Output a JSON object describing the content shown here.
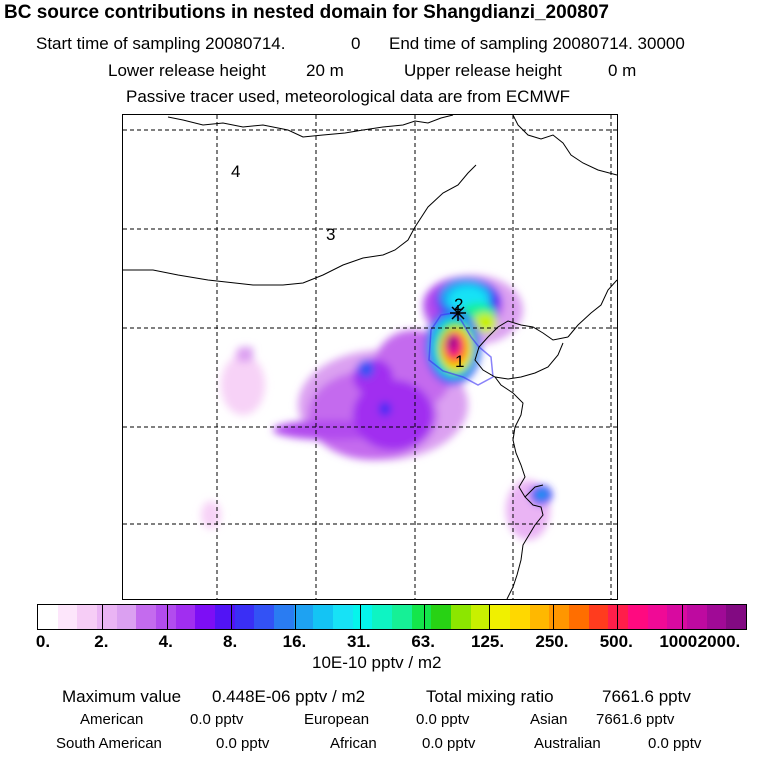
{
  "header": {
    "title": "BC  source contributions in nested domain for Shangdianzi_200807",
    "start_label": "Start time of sampling 20080714.",
    "start_value": "0",
    "end_label": "End time of sampling 20080714. 30000",
    "lower_label": "Lower release height",
    "lower_value": "20 m",
    "upper_label": "Upper release height",
    "upper_value": "0 m",
    "tracer_note": "Passive tracer used, meteorological data are from ECMWF"
  },
  "map": {
    "site_marker": "star-marker",
    "region_labels": [
      "1",
      "2",
      "3",
      "4"
    ]
  },
  "colorbar": {
    "colors": [
      "#ffffff",
      "#fde6fb",
      "#f6cdf6",
      "#eab4f4",
      "#dba0f1",
      "#c46bee",
      "#b24cee",
      "#a12ef0",
      "#7d0ef5",
      "#5214f5",
      "#3a2ff5",
      "#3352f5",
      "#2a7cf2",
      "#1ea2f2",
      "#14c4f4",
      "#17e2f6",
      "#05f5ec",
      "#0ef4c3",
      "#16f096",
      "#14e64b",
      "#28d214",
      "#8ce600",
      "#c8f000",
      "#f0f000",
      "#ffd800",
      "#ffb800",
      "#ff9600",
      "#ff6e00",
      "#ff3c1e",
      "#ff1e4a",
      "#ff0a80",
      "#f00a96",
      "#d80aa0",
      "#be0aa0",
      "#a00a96",
      "#820a82"
    ],
    "labels": [
      "0.",
      "2.",
      "4.",
      "8.",
      "16.",
      "31.",
      "63.",
      "125.",
      "250.",
      "500.",
      "1000.",
      "2000."
    ],
    "unit": "10E-10 pptv / m2"
  },
  "summary": {
    "max_label": "Maximum value",
    "max_value": "0.448E-06 pptv / m2",
    "total_label": "Total mixing ratio",
    "total_value": "7661.6 pptv",
    "regions": [
      {
        "name": "American",
        "value": "0.0 pptv"
      },
      {
        "name": "European",
        "value": "0.0 pptv"
      },
      {
        "name": "Asian",
        "value": "7661.6 pptv"
      },
      {
        "name": "South American",
        "value": "0.0 pptv"
      },
      {
        "name": "African",
        "value": "0.0 pptv"
      },
      {
        "name": "Australian",
        "value": "0.0 pptv"
      }
    ]
  }
}
